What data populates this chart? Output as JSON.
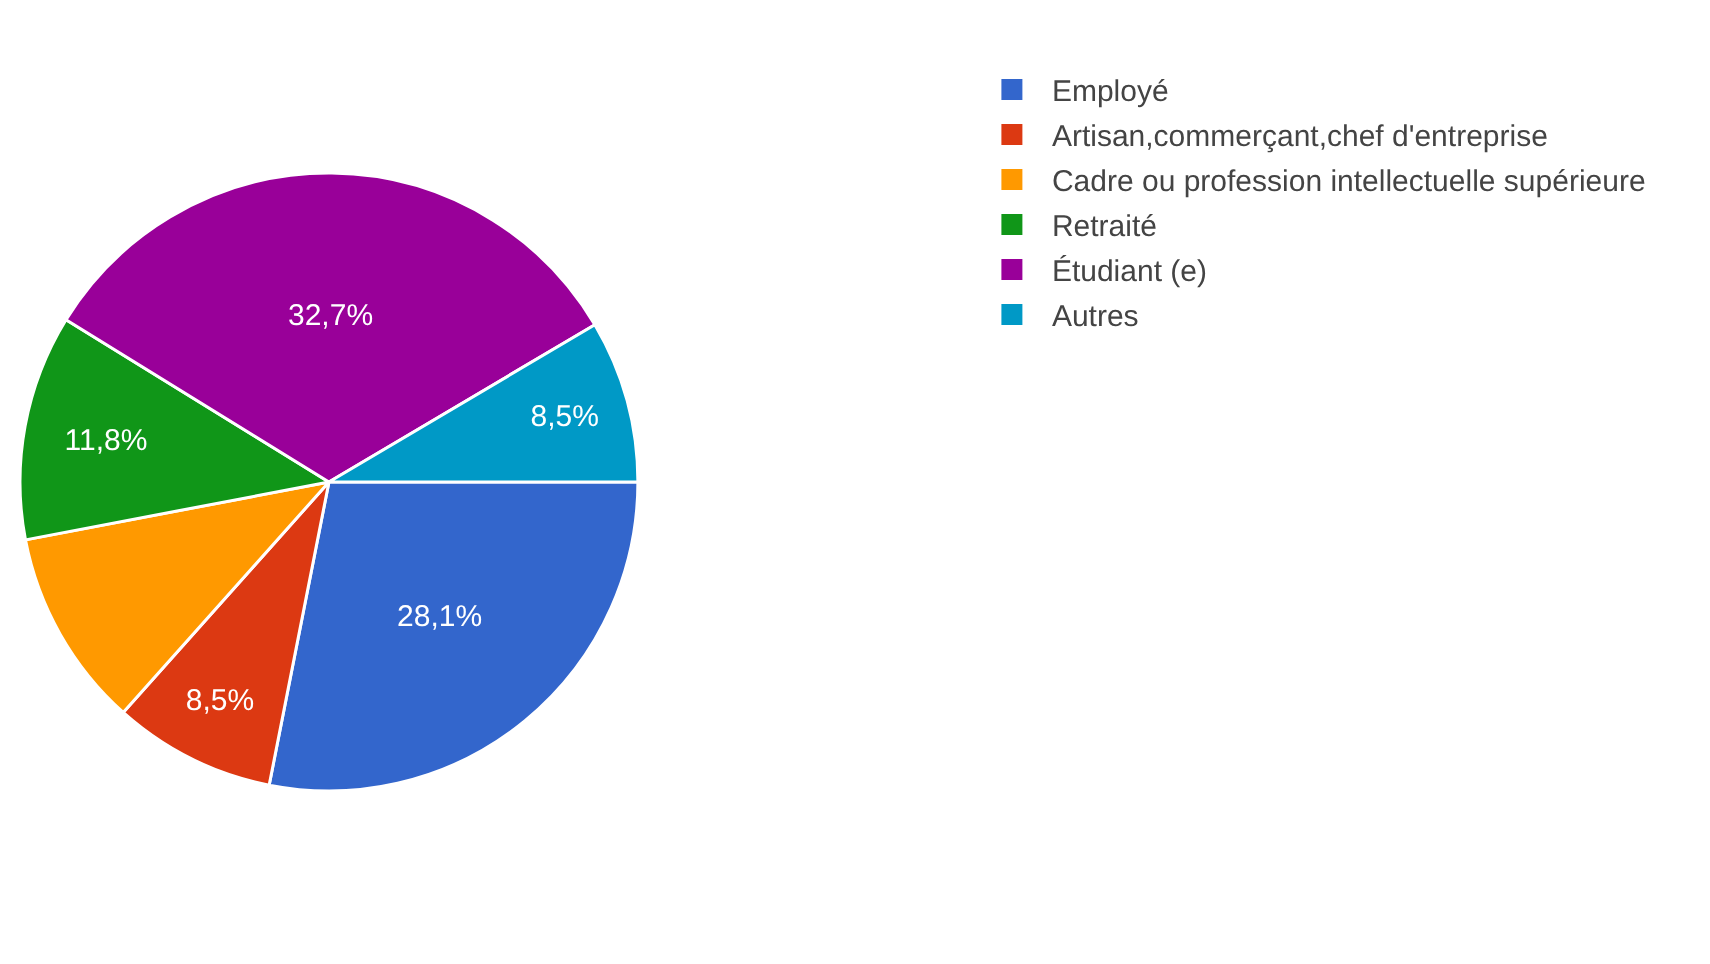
{
  "chart_data": {
    "type": "pie",
    "categories": [
      "Employé",
      "Artisan,commerçant,chef d'entreprise",
      "Cadre ou profession intellectuelle supérieure",
      "Retraité",
      "Étudiant (e)",
      "Autres"
    ],
    "values": [
      28.1,
      8.5,
      10.4,
      11.8,
      32.7,
      8.5
    ],
    "value_labels": [
      "28,1%",
      "8,5%",
      null,
      "11,8%",
      "32,7%",
      "8,5%"
    ],
    "colors": [
      "#3366cc",
      "#dc3912",
      "#ff9900",
      "#109618",
      "#990099",
      "#0099c6"
    ],
    "legend": "right"
  }
}
